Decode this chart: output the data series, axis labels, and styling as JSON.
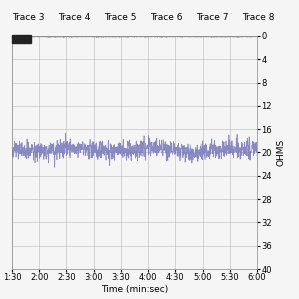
{
  "title": "",
  "xlabel": "Time (min:sec)",
  "ylabel": "OHMS",
  "x_start_sec": 90,
  "x_end_sec": 360,
  "x_tick_sec": [
    90,
    120,
    150,
    180,
    210,
    240,
    270,
    300,
    330,
    360
  ],
  "x_tick_labels": [
    "1:30",
    "2:00",
    "2:30",
    "3:00",
    "3:30",
    "4:00",
    "4:30",
    "5:00",
    "5:30",
    "6:00"
  ],
  "ylim_bottom": 40,
  "ylim_top": 0,
  "yticks": [
    0,
    4,
    8,
    12,
    16,
    20,
    24,
    28,
    32,
    36,
    40
  ],
  "main_line_color": "#7777bb",
  "main_line_mean": 19.5,
  "main_line_noise": 0.8,
  "flat_line_value": 0.15,
  "flat_line_color": "#999999",
  "legend_labels": [
    "Trace 3",
    "Trace 4",
    "Trace 5",
    "Trace 6",
    "Trace 7",
    "Trace 8"
  ],
  "legend_box_color": "#222222",
  "bg_color": "#f5f5f5",
  "grid_color": "#aaaaaa",
  "fontsize_axis": 6.5,
  "fontsize_tick": 6,
  "fontsize_legend": 6.5,
  "seed": 42
}
